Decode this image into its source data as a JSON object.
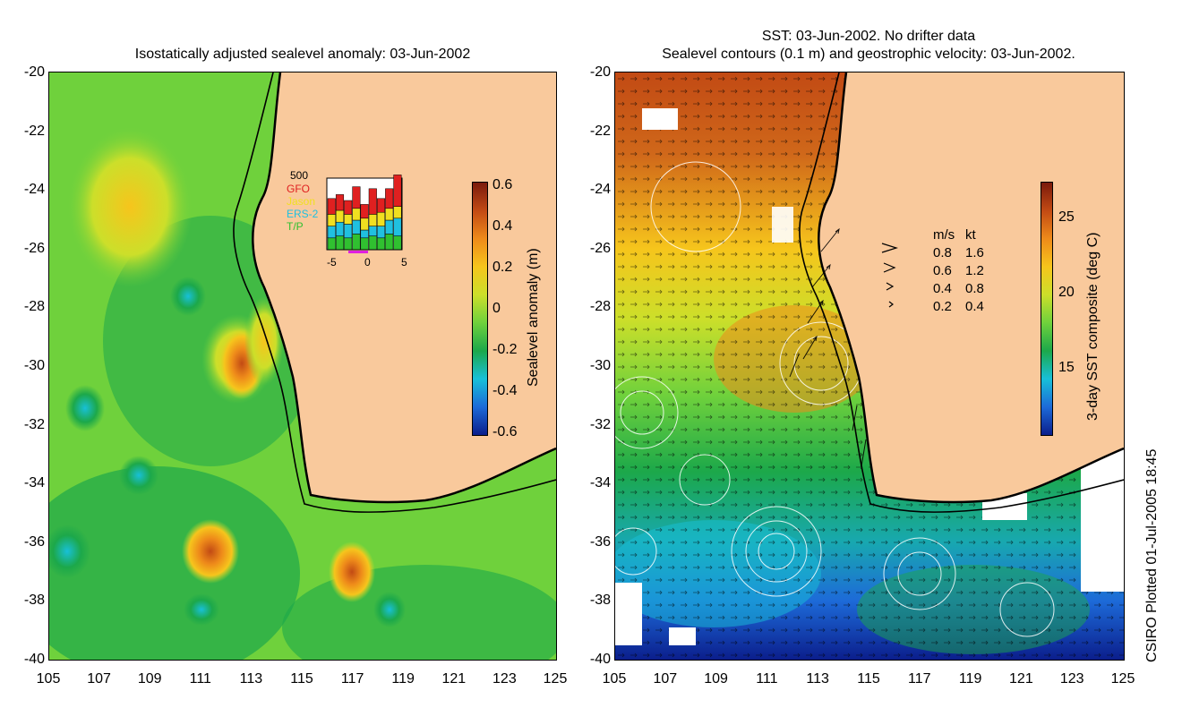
{
  "left_panel": {
    "title": "Isostatically adjusted sealevel anomaly: 03-Jun-2002",
    "y_ticks": [
      "-20",
      "-22",
      "-24",
      "-26",
      "-28",
      "-30",
      "-32",
      "-34",
      "-36",
      "-38",
      "-40"
    ],
    "x_ticks": [
      "105",
      "107",
      "109",
      "111",
      "113",
      "115",
      "117",
      "119",
      "121",
      "123",
      "125"
    ],
    "colorbar": {
      "title": "Sealevel anomaly (m)",
      "labels": [
        "0.6",
        "0.4",
        "0.2",
        "0",
        "-0.2",
        "-0.4",
        "-0.6"
      ],
      "colors": [
        "#0b1e8c",
        "#1d6ad8",
        "#18c0d8",
        "#1ca84a",
        "#6fd13c",
        "#ccdf2a",
        "#f6c51c",
        "#ee8a1a",
        "#c24a14",
        "#7a1a0c"
      ]
    },
    "inset": {
      "y_label": "500",
      "x_ticks": [
        "-5",
        "0",
        "5"
      ],
      "legend": [
        {
          "name": "GFO",
          "color": "#e02020"
        },
        {
          "name": "Jason",
          "color": "#f0e020"
        },
        {
          "name": "ERS-2",
          "color": "#20c0e0"
        },
        {
          "name": "T/P",
          "color": "#30c030"
        }
      ],
      "bars": [
        [
          60,
          60,
          60,
          80
        ],
        [
          70,
          70,
          60,
          80
        ],
        [
          60,
          70,
          50,
          70
        ],
        [
          80,
          70,
          60,
          110
        ],
        [
          60,
          40,
          60,
          70
        ],
        [
          70,
          50,
          60,
          130
        ],
        [
          60,
          60,
          70,
          70
        ],
        [
          80,
          70,
          60,
          100
        ],
        [
          70,
          90,
          60,
          160
        ]
      ]
    }
  },
  "right_panel": {
    "title_line1": "SST: 03-Jun-2002. No drifter data",
    "title_line2": "Sealevel contours (0.1 m) and geostrophic velocity: 03-Jun-2002.",
    "y_ticks": [
      "-20",
      "-22",
      "-24",
      "-26",
      "-28",
      "-30",
      "-32",
      "-34",
      "-36",
      "-38",
      "-40"
    ],
    "x_ticks": [
      "105",
      "107",
      "109",
      "111",
      "113",
      "115",
      "117",
      "119",
      "121",
      "123",
      "125"
    ],
    "colorbar": {
      "title": "3-day SST composite (deg C)",
      "labels": [
        "25",
        "20",
        "15"
      ],
      "colors": [
        "#0b1e8c",
        "#1d6ad8",
        "#18c0d8",
        "#1ca84a",
        "#6fd13c",
        "#ccdf2a",
        "#f6c51c",
        "#ee8a1a",
        "#c24a14",
        "#7a1a0c"
      ]
    },
    "velocity_legend": {
      "header_ms": "m/s",
      "header_kt": "kt",
      "rows": [
        {
          "ms": "0.8",
          "kt": "1.6"
        },
        {
          "ms": "0.6",
          "kt": "1.2"
        },
        {
          "ms": "0.4",
          "kt": "0.8"
        },
        {
          "ms": "0.2",
          "kt": "0.4"
        }
      ]
    }
  },
  "footer_stamp": "CSIRO Plotted 01-Jul-2005 18:45",
  "land_color": "#f9c99c"
}
